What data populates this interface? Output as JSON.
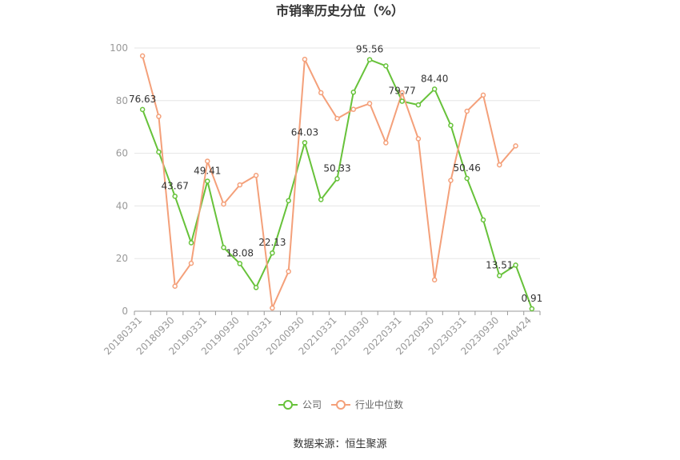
{
  "chart_data": {
    "type": "line",
    "title": "市销率历史分位（%）",
    "source": "数据来源：恒生聚源",
    "ylim": [
      0,
      100
    ],
    "yticks": [
      0,
      20,
      40,
      60,
      80,
      100
    ],
    "grid": true,
    "legend_position": "bottom",
    "x_tick_labels": [
      "20180331",
      "20180930",
      "20190331",
      "20190930",
      "20200331",
      "20200930",
      "20210331",
      "20210930",
      "20220331",
      "20220930",
      "20230331",
      "20230930",
      "20240424"
    ],
    "x": [
      "20180331",
      "20180630",
      "20180930",
      "20181231",
      "20190331",
      "20190630",
      "20190930",
      "20191231",
      "20200331",
      "20200630",
      "20200930",
      "20201231",
      "20210331",
      "20210630",
      "20210930",
      "20211231",
      "20220331",
      "20220630",
      "20220930",
      "20221231",
      "20230331",
      "20230630",
      "20230930",
      "20231231",
      "20240424"
    ],
    "series": [
      {
        "name": "公司",
        "color": "#67c23a",
        "values": [
          76.63,
          60.5,
          43.67,
          26.0,
          49.41,
          24.2,
          18.08,
          9.0,
          22.13,
          42.0,
          64.03,
          42.4,
          50.33,
          83.2,
          95.56,
          93.2,
          79.77,
          78.4,
          84.4,
          70.6,
          50.46,
          34.7,
          13.51,
          17.5,
          0.91
        ],
        "labels": [
          "76.63",
          null,
          "43.67",
          null,
          "49.41",
          null,
          "18.08",
          null,
          "22.13",
          null,
          "64.03",
          null,
          "50.33",
          null,
          "95.56",
          null,
          "79.77",
          null,
          "84.40",
          null,
          "50.46",
          null,
          "13.51",
          null,
          "0.91"
        ]
      },
      {
        "name": "行业中位数",
        "color": "#f4a07a",
        "values": [
          97.0,
          74.0,
          9.5,
          18.2,
          57.0,
          40.7,
          48.0,
          51.6,
          1.2,
          15.1,
          95.7,
          83.0,
          73.2,
          76.7,
          78.9,
          64.0,
          83.0,
          65.5,
          11.9,
          49.7,
          76.0,
          82.1,
          55.6,
          62.8,
          null
        ]
      }
    ]
  }
}
